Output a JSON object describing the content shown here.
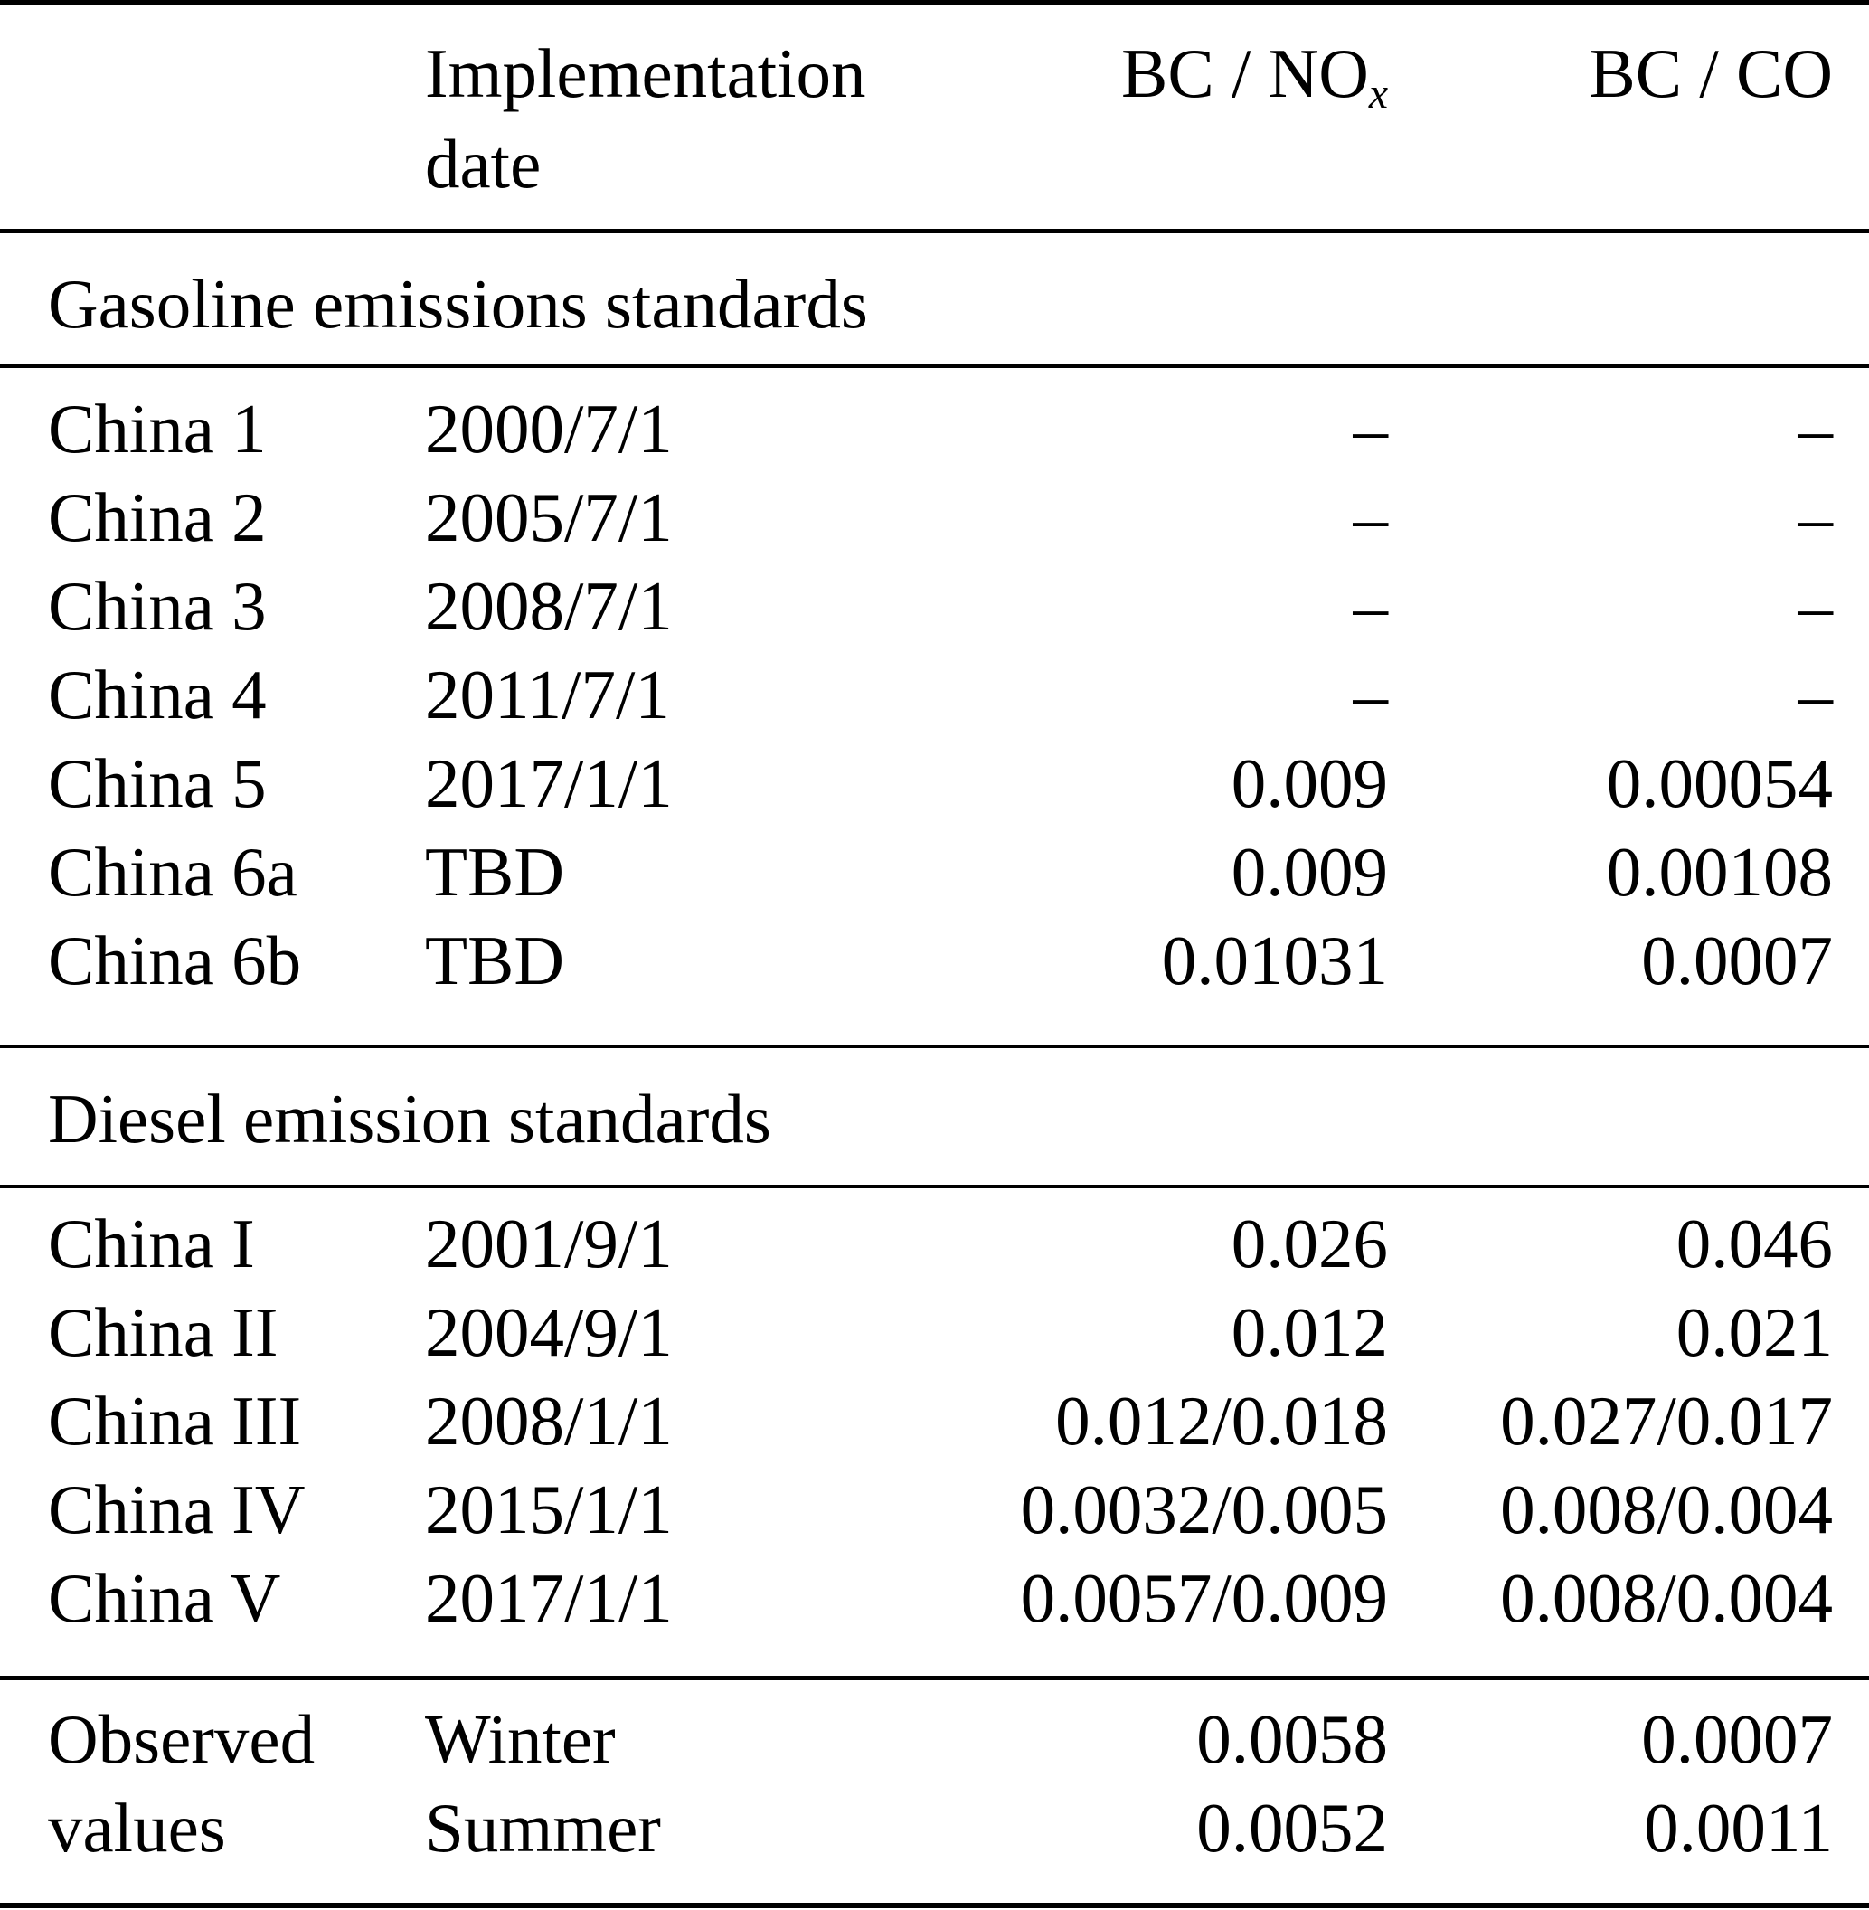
{
  "header": {
    "implementation": "Implementation",
    "date": "date",
    "bc_nox_main": "BC / NO",
    "bc_nox_sub": "x",
    "bc_co": "BC / CO"
  },
  "gasoline": {
    "title": "Gasoline emissions standards",
    "rows": [
      {
        "name": "China 1",
        "date": "2000/7/1",
        "bc_nox": "–",
        "bc_co": "–"
      },
      {
        "name": "China 2",
        "date": "2005/7/1",
        "bc_nox": "–",
        "bc_co": "–"
      },
      {
        "name": "China 3",
        "date": "2008/7/1",
        "bc_nox": "–",
        "bc_co": "–"
      },
      {
        "name": "China 4",
        "date": "2011/7/1",
        "bc_nox": "–",
        "bc_co": "–"
      },
      {
        "name": "China 5",
        "date": "2017/1/1",
        "bc_nox": "0.009",
        "bc_co": "0.00054"
      },
      {
        "name": "China 6a",
        "date": "TBD",
        "bc_nox": "0.009",
        "bc_co": "0.00108"
      },
      {
        "name": "China 6b",
        "date": "TBD",
        "bc_nox": "0.01031",
        "bc_co": "0.0007"
      }
    ]
  },
  "diesel": {
    "title": "Diesel emission standards",
    "rows": [
      {
        "name": "China I",
        "date": "2001/9/1",
        "bc_nox": "0.026",
        "bc_co": "0.046"
      },
      {
        "name": "China II",
        "date": "2004/9/1",
        "bc_nox": "0.012",
        "bc_co": "0.021"
      },
      {
        "name": "China III",
        "date": "2008/1/1",
        "bc_nox": "0.012/0.018",
        "bc_co": "0.027/0.017"
      },
      {
        "name": "China IV",
        "date": "2015/1/1",
        "bc_nox": "0.0032/0.005",
        "bc_co": "0.008/0.004"
      },
      {
        "name": "China V",
        "date": "2017/1/1",
        "bc_nox": "0.0057/0.009",
        "bc_co": "0.008/0.004"
      }
    ]
  },
  "observed": {
    "rows": [
      {
        "name": "Observed",
        "date": "Winter",
        "bc_nox": "0.0058",
        "bc_co": "0.0007"
      },
      {
        "name": "values",
        "date": "Summer",
        "bc_nox": "0.0052",
        "bc_co": "0.0011"
      }
    ]
  }
}
